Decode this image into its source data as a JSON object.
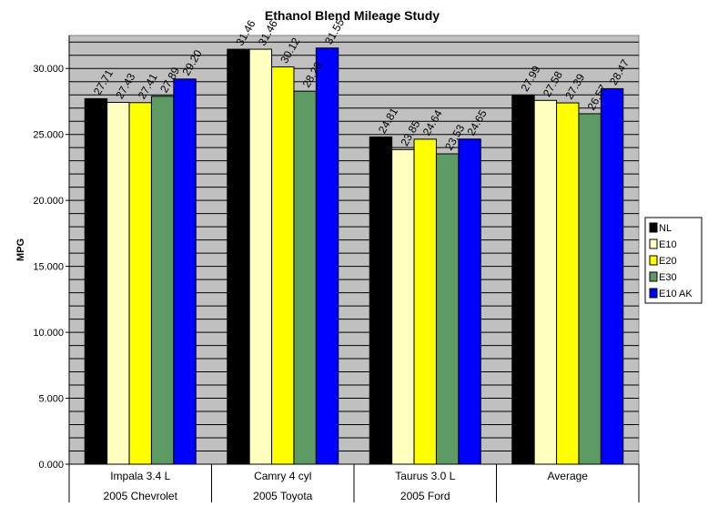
{
  "chart_data": {
    "type": "bar",
    "title": "Ethanol Blend Mileage Study",
    "ylabel": "MPG",
    "xlabel": "",
    "ylim": [
      0,
      32.5
    ],
    "yticks": [
      "0.000",
      "5.000",
      "10.000",
      "15.000",
      "20.000",
      "25.000",
      "30.000"
    ],
    "ytick_values": [
      0,
      5,
      10,
      15,
      20,
      25,
      30
    ],
    "grid": true,
    "legend_position": "right",
    "categories": [
      {
        "label": "Impala 3.4 L",
        "group": "2005 Chevrolet"
      },
      {
        "label": "Camry 4 cyl",
        "group": "2005 Toyota"
      },
      {
        "label": "Taurus 3.0 L",
        "group": "2005 Ford"
      },
      {
        "label": "Average",
        "group": ""
      }
    ],
    "series": [
      {
        "name": "NL",
        "color": "#000000",
        "values": [
          27.71,
          31.46,
          24.81,
          27.99
        ],
        "labels": [
          "27.71",
          "31.46",
          "24.81",
          "27.99"
        ]
      },
      {
        "name": "E10",
        "color": "#ffffc0",
        "values": [
          27.43,
          31.46,
          23.85,
          27.58
        ],
        "labels": [
          "27.43",
          "31.46",
          "23.85",
          "27.58"
        ]
      },
      {
        "name": "E20",
        "color": "#ffff00",
        "values": [
          27.41,
          30.12,
          24.64,
          27.39
        ],
        "labels": [
          "27.41",
          "30.12",
          "24.64",
          "27.39"
        ]
      },
      {
        "name": "E30",
        "color": "#5e9a63",
        "values": [
          27.89,
          28.28,
          23.53,
          26.57
        ],
        "labels": [
          "27.89",
          "28.28",
          "23.53",
          "26.57"
        ]
      },
      {
        "name": "E10 AK",
        "color": "#0000ff",
        "values": [
          29.2,
          31.55,
          24.65,
          28.47
        ],
        "labels": [
          "29.20",
          "31.55",
          "24.65",
          "28.47"
        ]
      }
    ],
    "plot_background": "#c0c0c0",
    "gridline_color": "#000000"
  }
}
